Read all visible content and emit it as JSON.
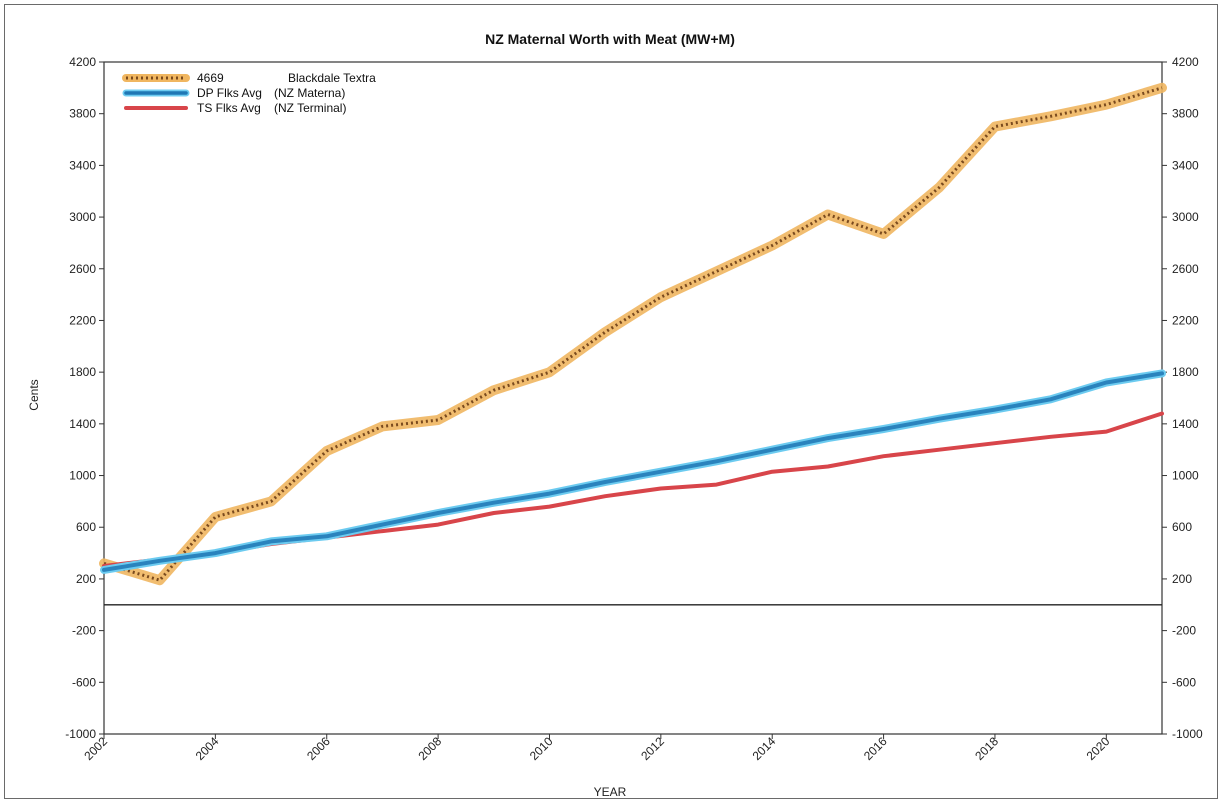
{
  "chart_data": {
    "type": "line",
    "title": "NZ Maternal Worth with Meat (MW+M)",
    "xlabel": "YEAR",
    "ylabel": "Cents",
    "xlim": [
      2002,
      2021
    ],
    "ylim": [
      -1000,
      4200
    ],
    "y_ticks": [
      -1000,
      -600,
      -200,
      200,
      600,
      1000,
      1400,
      1800,
      2200,
      2600,
      3000,
      3400,
      3800,
      4200
    ],
    "x_ticks": [
      2002,
      2004,
      2006,
      2008,
      2010,
      2012,
      2014,
      2016,
      2018,
      2020
    ],
    "y_ticks_right": true,
    "legend_position": "top-left",
    "x": [
      2002,
      2003,
      2004,
      2005,
      2006,
      2007,
      2008,
      2009,
      2010,
      2011,
      2012,
      2013,
      2014,
      2015,
      2016,
      2017,
      2018,
      2019,
      2020,
      2021
    ],
    "series": [
      {
        "name": "4669",
        "note": "Blackdale Textra",
        "color": "#f0b660",
        "dot_color": "#7a4a1e",
        "values": [
          320,
          190,
          680,
          800,
          1190,
          1380,
          1430,
          1660,
          1800,
          2110,
          2380,
          2580,
          2780,
          3020,
          2870,
          3230,
          3700,
          3780,
          3870,
          4000
        ]
      },
      {
        "name": "DP Flks Avg",
        "note": "(NZ Materna)",
        "color": "#2f9fd8",
        "values": [
          270,
          340,
          400,
          490,
          530,
          620,
          710,
          790,
          860,
          950,
          1030,
          1110,
          1200,
          1290,
          1360,
          1440,
          1510,
          1590,
          1720,
          1790
        ]
      },
      {
        "name": "TS Flks Avg",
        "note": "(NZ Terminal)",
        "color": "#d8454a",
        "values": [
          300,
          350,
          400,
          470,
          520,
          570,
          620,
          710,
          760,
          840,
          900,
          930,
          1030,
          1070,
          1150,
          1200,
          1250,
          1300,
          1340,
          1480
        ]
      }
    ]
  }
}
